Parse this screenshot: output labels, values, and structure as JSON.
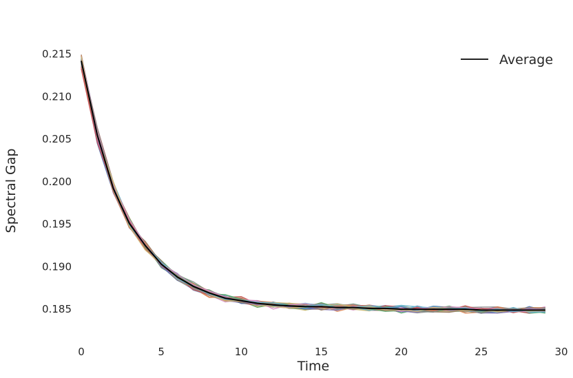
{
  "chart_data": {
    "type": "line",
    "title": "",
    "xlabel": "Time",
    "ylabel": "Spectral Gap",
    "xlim": [
      0,
      30
    ],
    "ylim": [
      0.1825,
      0.2165
    ],
    "xticks": [
      0,
      5,
      10,
      15,
      20,
      25,
      30
    ],
    "yticks": [
      0.185,
      0.19,
      0.195,
      0.2,
      0.205,
      0.21,
      0.215
    ],
    "xtick_labels": [
      "0",
      "5",
      "10",
      "15",
      "20",
      "25",
      "30"
    ],
    "ytick_labels": [
      "0.185",
      "0.190",
      "0.195",
      "0.200",
      "0.205",
      "0.210",
      "0.215"
    ],
    "grid": false,
    "legend": {
      "position": "top-right",
      "entries": [
        "Average"
      ]
    },
    "x": [
      0,
      1,
      2,
      3,
      4,
      5,
      6,
      7,
      8,
      9,
      10,
      11,
      12,
      13,
      14,
      15,
      16,
      17,
      18,
      19,
      20,
      21,
      22,
      23,
      24,
      25,
      26,
      27,
      28,
      29
    ],
    "average": {
      "name": "Average",
      "color": "#000000",
      "values": [
        0.2142,
        0.2055,
        0.1992,
        0.1951,
        0.1925,
        0.1903,
        0.1888,
        0.1877,
        0.1869,
        0.1863,
        0.186,
        0.1857,
        0.1855,
        0.1854,
        0.1853,
        0.1853,
        0.1852,
        0.1852,
        0.1851,
        0.1851,
        0.185,
        0.185,
        0.185,
        0.185,
        0.185,
        0.1849,
        0.1849,
        0.1849,
        0.1849,
        0.1849
      ]
    },
    "trajectories": {
      "description_count": 50,
      "colors": [
        "#4c72b0",
        "#dd8452",
        "#55a868",
        "#c44e52",
        "#8172b3",
        "#937860",
        "#da8bc3",
        "#8c8c8c",
        "#ccb974",
        "#64b5cd"
      ]
    }
  }
}
